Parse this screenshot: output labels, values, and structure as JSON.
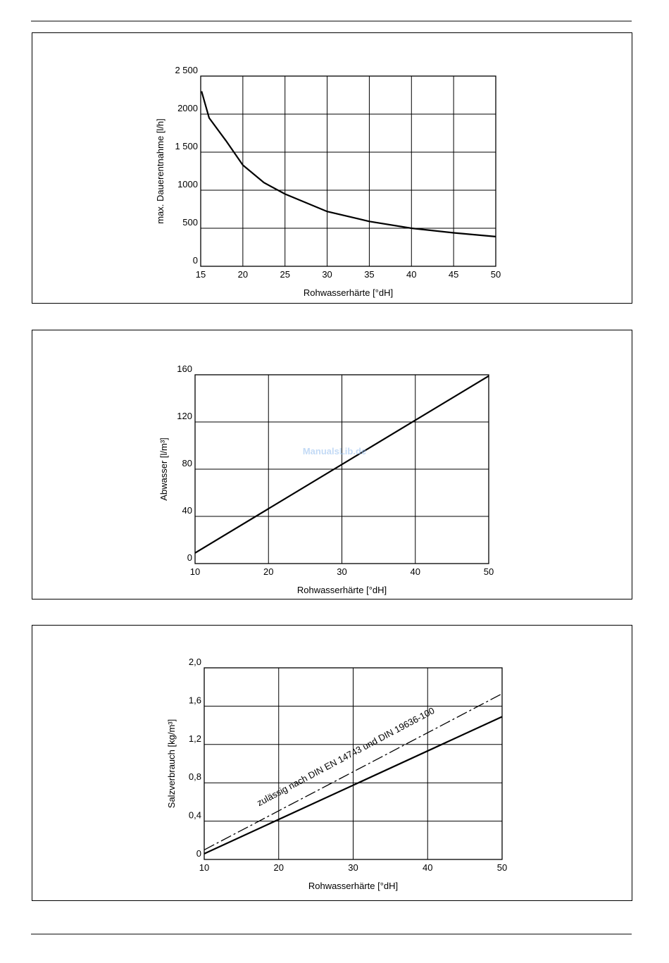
{
  "watermark": "ManualsLib.de",
  "chart_data": [
    {
      "type": "line",
      "xlabel": "Rohwasserhärte [°dH]",
      "ylabel": "max. Dauerentnahme [l/h]",
      "x": [
        15.1,
        16,
        17,
        18,
        20,
        22.5,
        25,
        30,
        35,
        40,
        45,
        50
      ],
      "series": [
        {
          "color": "#000000",
          "values": [
            2300,
            1950,
            1800,
            1650,
            1330,
            1100,
            950,
            720,
            590,
            500,
            440,
            390
          ]
        }
      ],
      "xlim": [
        15,
        50
      ],
      "xticks": [
        15,
        20,
        25,
        30,
        35,
        40,
        45,
        50
      ],
      "ylim": [
        0,
        2500
      ],
      "yticks": [
        0,
        500,
        {
          "value": 1000,
          "label": "1000"
        },
        {
          "value": 1500,
          "label": "1 500"
        },
        {
          "value": 2000,
          "label": "2000"
        },
        {
          "value": 2500,
          "label": "2 500"
        }
      ],
      "grid": true
    },
    {
      "type": "line",
      "xlabel": "Rohwasserhärte [°dH]",
      "ylabel": "Abwasser [l/m³]",
      "x": [
        10,
        50
      ],
      "series": [
        {
          "color": "#000000",
          "values": [
            9,
            159
          ]
        }
      ],
      "xlim": [
        10,
        50
      ],
      "xticks": [
        10,
        20,
        30,
        40,
        50
      ],
      "ylim": [
        0,
        160
      ],
      "yticks": [
        0,
        40,
        80,
        120,
        160
      ],
      "grid": true
    },
    {
      "type": "line",
      "xlabel": "Rohwasserhärte [°dH]",
      "ylabel": "Salzverbrauch [kg/m³]",
      "annotation": "zulässig nach DIN EN 14743 und DIN 19636-100",
      "x": [
        10,
        50
      ],
      "series": [
        {
          "color": "#000000",
          "values": [
            0.06,
            1.49
          ]
        },
        {
          "color": "#000000",
          "dash": "dashed",
          "values": [
            0.1,
            1.73
          ]
        }
      ],
      "xlim": [
        10,
        50
      ],
      "xticks": [
        10,
        20,
        30,
        40,
        50
      ],
      "ylim": [
        0,
        2
      ],
      "yticks": [
        0,
        {
          "value": 0.4,
          "label": "0,4"
        },
        {
          "value": 0.8,
          "label": "0,8"
        },
        {
          "value": 1.2,
          "label": "1,2"
        },
        {
          "value": 1.6,
          "label": "1,6"
        },
        {
          "value": 2,
          "label": "2,0"
        }
      ],
      "grid": true
    }
  ]
}
